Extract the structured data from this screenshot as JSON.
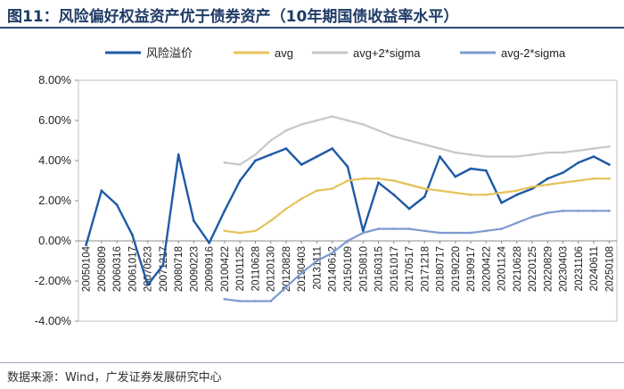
{
  "header": {
    "title": "图11：风险偏好权益资产优于债券资产（10年期国债收益率水平）"
  },
  "footer": {
    "source": "数据来源：Wind，广发证券发展研究中心"
  },
  "chart_data": {
    "type": "line",
    "title": "图11：风险偏好权益资产优于债券资产（10年期国债收益率水平）",
    "ylabel": "",
    "xlabel": "",
    "ylim": [
      -0.04,
      0.08
    ],
    "yticks": [
      "8.00%",
      "6.00%",
      "4.00%",
      "2.00%",
      "0.00%",
      "-2.00%",
      "-4.00%"
    ],
    "ytick_values": [
      0.08,
      0.06,
      0.04,
      0.02,
      0.0,
      -0.02,
      -0.04
    ],
    "categories": [
      "20050104",
      "20050809",
      "20060316",
      "20061017",
      "20070523",
      "20071217",
      "20080718",
      "20090223",
      "20090916",
      "20100422",
      "20101125",
      "20110628",
      "20120130",
      "20120828",
      "20130403",
      "20131111",
      "20140612",
      "20150109",
      "20150810",
      "20160315",
      "20161017",
      "20170517",
      "20171218",
      "20180717",
      "20190220",
      "20190917",
      "20200422",
      "20201124",
      "20210628",
      "20220125",
      "20220829",
      "20230403",
      "20231106",
      "20240611",
      "20250108"
    ],
    "series": [
      {
        "name": "风险溢价",
        "color": "#1f5aa6",
        "values": [
          -0.002,
          0.025,
          0.018,
          0.003,
          -0.022,
          -0.012,
          0.043,
          0.01,
          -0.001,
          0.015,
          0.03,
          0.04,
          0.043,
          0.046,
          0.038,
          0.042,
          0.046,
          0.037,
          0.005,
          0.029,
          0.023,
          0.016,
          0.022,
          0.042,
          0.032,
          0.036,
          0.035,
          0.019,
          0.023,
          0.026,
          0.031,
          0.034,
          0.039,
          0.042,
          0.038
        ]
      },
      {
        "name": "avg",
        "color": "#e6c25a",
        "values": [
          null,
          null,
          null,
          null,
          null,
          null,
          null,
          null,
          null,
          0.005,
          0.004,
          0.005,
          0.01,
          0.016,
          0.021,
          0.025,
          0.026,
          0.03,
          0.031,
          0.031,
          0.03,
          0.028,
          0.026,
          0.025,
          0.024,
          0.023,
          0.023,
          0.024,
          0.025,
          0.027,
          0.028,
          0.029,
          0.03,
          0.031,
          0.031
        ]
      },
      {
        "name": "avg+2*sigma",
        "color": "#c8c8c8",
        "values": [
          null,
          null,
          null,
          null,
          null,
          null,
          null,
          null,
          null,
          0.039,
          0.038,
          0.043,
          0.05,
          0.055,
          0.058,
          0.06,
          0.062,
          0.06,
          0.058,
          0.055,
          0.052,
          0.05,
          0.048,
          0.046,
          0.044,
          0.043,
          0.042,
          0.042,
          0.042,
          0.043,
          0.044,
          0.044,
          0.045,
          0.046,
          0.047
        ]
      },
      {
        "name": "avg-2*sigma",
        "color": "#7d9ccf",
        "values": [
          null,
          null,
          null,
          null,
          null,
          null,
          null,
          null,
          null,
          -0.029,
          -0.03,
          -0.03,
          -0.03,
          -0.023,
          -0.016,
          -0.01,
          -0.006,
          0.0,
          0.004,
          0.006,
          0.006,
          0.006,
          0.005,
          0.004,
          0.004,
          0.004,
          0.005,
          0.006,
          0.009,
          0.012,
          0.014,
          0.015,
          0.015,
          0.015,
          0.015
        ]
      }
    ],
    "legend": [
      "风险溢价",
      "avg",
      "avg+2*sigma",
      "avg-2*sigma"
    ],
    "legend_position": "top"
  }
}
